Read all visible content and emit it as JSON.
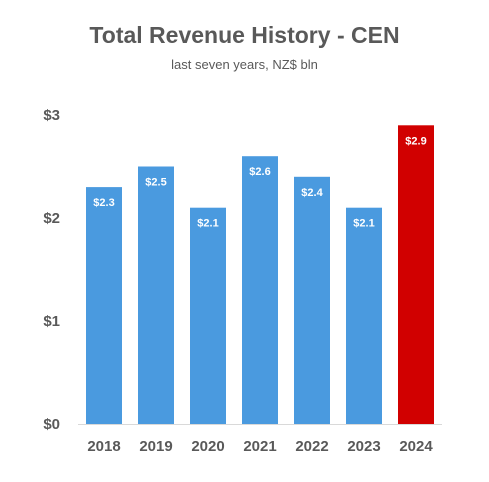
{
  "chart_data": {
    "type": "bar",
    "title": "Total Revenue History - CEN",
    "subtitle": "last seven years, NZ$ bln",
    "categories": [
      "2018",
      "2019",
      "2020",
      "2021",
      "2022",
      "2023",
      "2024"
    ],
    "values": [
      2.3,
      2.5,
      2.1,
      2.6,
      2.4,
      2.1,
      2.9
    ],
    "data_labels": [
      "$2.3",
      "$2.5",
      "$2.1",
      "$2.6",
      "$2.4",
      "$2.1",
      "$2.9"
    ],
    "ylim": [
      0,
      3
    ],
    "yticks": [
      0,
      1,
      2,
      3
    ],
    "ytick_labels": [
      "$0",
      "$1",
      "$2",
      "$3"
    ],
    "xlabel": "",
    "ylabel": "",
    "grid": false,
    "legend": "none",
    "colors": {
      "default_bar": "#4A9ADF",
      "highlight_bar": "#D10000",
      "text": "#595959",
      "axis": "#D9D9D9"
    },
    "highlight_index": 6
  }
}
